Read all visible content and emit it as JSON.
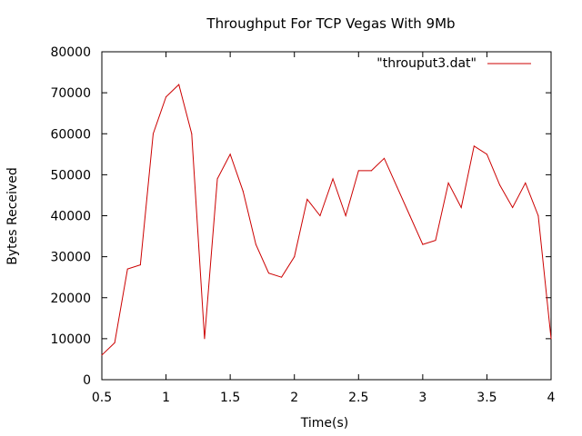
{
  "chart_data": {
    "type": "line",
    "title": "Throughput For TCP Vegas With 9Mb",
    "xlabel": "Time(s)",
    "ylabel": "Bytes Received",
    "xlim": [
      0.5,
      4
    ],
    "ylim": [
      0,
      80000
    ],
    "xticks": [
      "0.5",
      "1",
      "1.5",
      "2",
      "2.5",
      "3",
      "3.5",
      "4"
    ],
    "yticks": [
      "0",
      "10000",
      "20000",
      "30000",
      "40000",
      "50000",
      "60000",
      "70000",
      "80000"
    ],
    "grid": false,
    "legend_position": "top-right",
    "series": [
      {
        "name": "\"throuput3.dat\"",
        "color": "#cc0000",
        "x": [
          0.5,
          0.6,
          0.7,
          0.8,
          0.9,
          1.0,
          1.1,
          1.2,
          1.3,
          1.4,
          1.5,
          1.6,
          1.7,
          1.8,
          1.9,
          2.0,
          2.1,
          2.2,
          2.3,
          2.4,
          2.5,
          2.6,
          2.7,
          2.8,
          2.9,
          3.0,
          3.1,
          3.2,
          3.3,
          3.4,
          3.5,
          3.6,
          3.7,
          3.8,
          3.9,
          4.0
        ],
        "y": [
          6000,
          9000,
          27000,
          28000,
          60000,
          69000,
          72000,
          60000,
          10000,
          49000,
          55000,
          46000,
          33000,
          26000,
          25000,
          30000,
          44000,
          40000,
          49000,
          40000,
          51000,
          51000,
          54000,
          47000,
          40000,
          33000,
          34000,
          48000,
          42000,
          57000,
          55000,
          47500,
          42000,
          48000,
          40000,
          10000
        ]
      }
    ]
  }
}
